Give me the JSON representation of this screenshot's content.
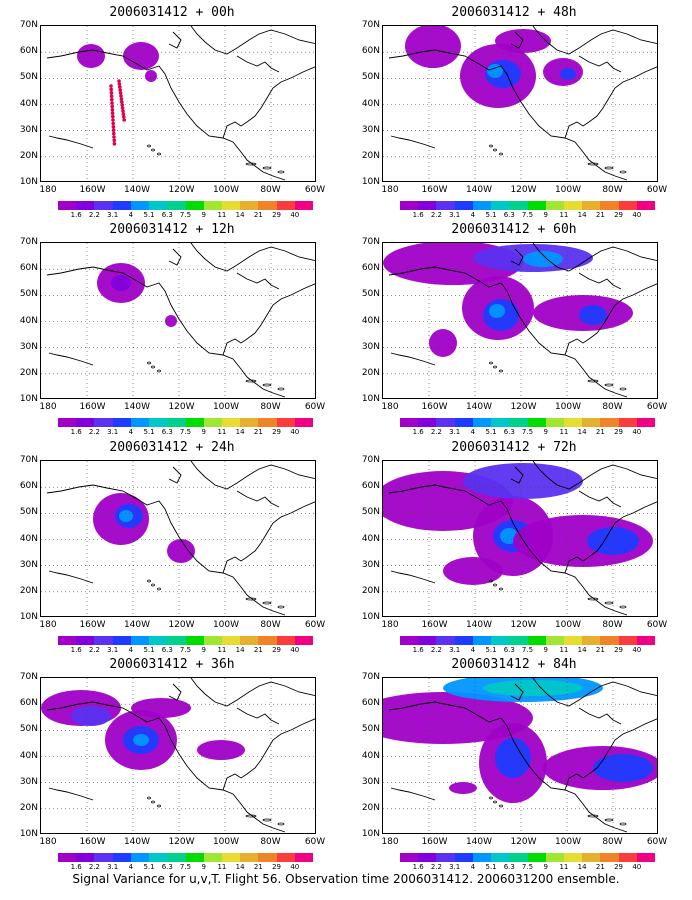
{
  "colorbar": {
    "labels": [
      "1.6",
      "2.2",
      "3.1",
      "4",
      "5.1",
      "6.3",
      "7.5",
      "9",
      "11",
      "14",
      "21",
      "29",
      "40"
    ],
    "colors": [
      "#a000c8",
      "#8200dc",
      "#5a32f0",
      "#1e3cff",
      "#0096ff",
      "#00c8c8",
      "#00d28c",
      "#00dc00",
      "#a0e632",
      "#e6dc32",
      "#e6af2d",
      "#f08228",
      "#fa3c3c",
      "#f00082"
    ]
  },
  "axes": {
    "y_labels": [
      "70N",
      "60N",
      "50N",
      "40N",
      "30N",
      "20N",
      "10N"
    ],
    "x_labels": [
      "180",
      "160W",
      "140W",
      "120W",
      "100W",
      "80W",
      "60W"
    ]
  },
  "panels": [
    {
      "title": "2006031412 + 00h"
    },
    {
      "title": "2006031412 + 48h"
    },
    {
      "title": "2006031412 + 12h"
    },
    {
      "title": "2006031412 + 60h"
    },
    {
      "title": "2006031412 + 24h"
    },
    {
      "title": "2006031412 + 72h"
    },
    {
      "title": "2006031412 + 36h"
    },
    {
      "title": "2006031412 + 84h"
    }
  ],
  "footer": "Signal Variance for u,v,T. Flight 56. Observation time 2006031412. 2006031200 ensemble."
}
